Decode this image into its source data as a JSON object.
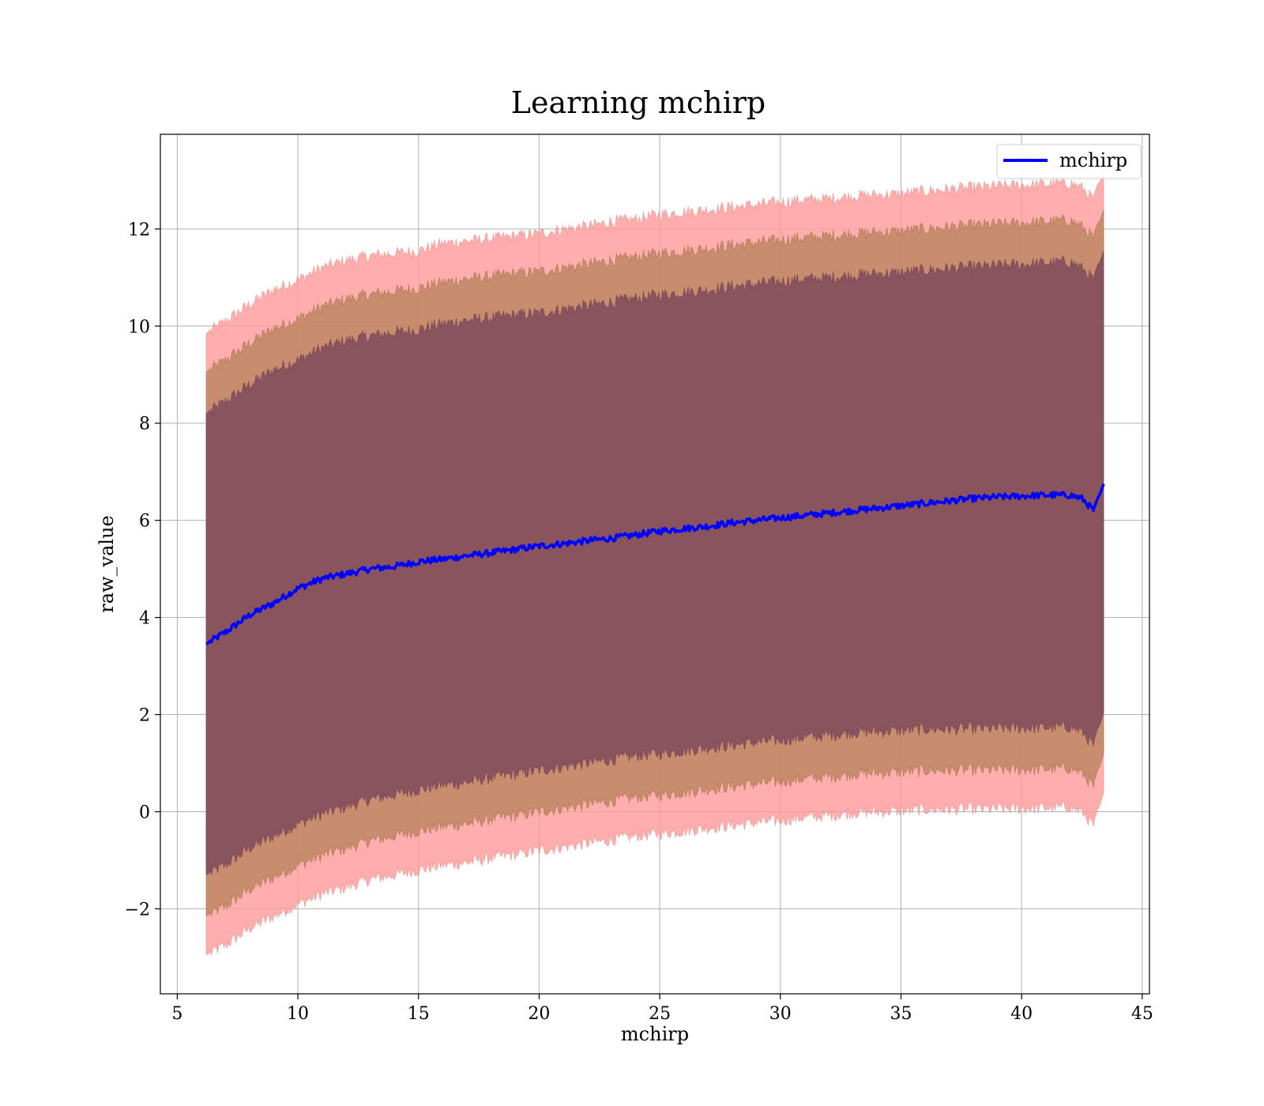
{
  "chart_data": {
    "type": "area",
    "title": "Learning mchirp",
    "xlabel": "mchirp",
    "ylabel": "raw_value",
    "xlim": [
      4.3,
      45.3
    ],
    "ylim": [
      -3.75,
      13.95
    ],
    "xticks": [
      5,
      10,
      15,
      20,
      25,
      30,
      35,
      40,
      45
    ],
    "yticks": [
      -2,
      0,
      2,
      4,
      6,
      8,
      10,
      12
    ],
    "ytick_labels": [
      "−2",
      "0",
      "2",
      "4",
      "6",
      "8",
      "10",
      "12"
    ],
    "grid": true,
    "legend": {
      "placement": "top-right",
      "entries": [
        "mchirp"
      ]
    },
    "colors": {
      "line": "#0000ff",
      "band_outer": "#ff9999",
      "band_middle": "#b5835a",
      "band_inner": "#7f4a5c"
    },
    "x": [
      6.2,
      7,
      8,
      9,
      10,
      11,
      12,
      13,
      14,
      15,
      16,
      17,
      18,
      19,
      20,
      21,
      22,
      23,
      24,
      25,
      26,
      27,
      28,
      29,
      30,
      31,
      32,
      33,
      34,
      35,
      36,
      37,
      38,
      39,
      40,
      41,
      42,
      42.5,
      43,
      43.4
    ],
    "series": [
      {
        "name": "mchirp",
        "role": "line",
        "values": [
          3.45,
          3.7,
          4.05,
          4.3,
          4.6,
          4.8,
          4.9,
          5.0,
          5.05,
          5.15,
          5.2,
          5.27,
          5.33,
          5.4,
          5.47,
          5.52,
          5.58,
          5.63,
          5.7,
          5.78,
          5.83,
          5.88,
          5.95,
          6.0,
          6.05,
          6.1,
          6.15,
          6.2,
          6.25,
          6.3,
          6.35,
          6.4,
          6.45,
          6.48,
          6.5,
          6.52,
          6.52,
          6.45,
          6.2,
          6.75
        ]
      },
      {
        "role": "band_outer",
        "upper": [
          9.85,
          10.1,
          10.45,
          10.75,
          10.95,
          11.2,
          11.35,
          11.45,
          11.5,
          11.55,
          11.7,
          11.75,
          11.8,
          11.85,
          11.9,
          12.0,
          12.05,
          12.15,
          12.2,
          12.3,
          12.35,
          12.4,
          12.45,
          12.5,
          12.55,
          12.6,
          12.62,
          12.68,
          12.7,
          12.72,
          12.78,
          12.82,
          12.85,
          12.88,
          12.9,
          12.92,
          12.95,
          12.85,
          12.6,
          13.2
        ],
        "lower": [
          -2.95,
          -2.75,
          -2.4,
          -2.15,
          -1.9,
          -1.7,
          -1.55,
          -1.4,
          -1.3,
          -1.2,
          -1.1,
          -1.05,
          -0.95,
          -0.88,
          -0.8,
          -0.72,
          -0.65,
          -0.58,
          -0.5,
          -0.45,
          -0.4,
          -0.33,
          -0.28,
          -0.22,
          -0.18,
          -0.12,
          -0.08,
          -0.02,
          0.0,
          0.02,
          0.05,
          0.05,
          0.06,
          0.06,
          0.07,
          0.08,
          0.1,
          0.0,
          -0.3,
          0.4
        ]
      },
      {
        "role": "band_middle",
        "upper": [
          9.05,
          9.3,
          9.65,
          9.95,
          10.15,
          10.4,
          10.55,
          10.65,
          10.72,
          10.78,
          10.9,
          10.97,
          11.02,
          11.08,
          11.12,
          11.2,
          11.27,
          11.35,
          11.42,
          11.5,
          11.55,
          11.6,
          11.67,
          11.72,
          11.77,
          11.82,
          11.85,
          11.9,
          11.93,
          11.95,
          12.0,
          12.04,
          12.07,
          12.1,
          12.12,
          12.15,
          12.18,
          12.05,
          11.8,
          12.4
        ],
        "lower": [
          -2.15,
          -1.95,
          -1.6,
          -1.35,
          -1.1,
          -0.9,
          -0.75,
          -0.6,
          -0.5,
          -0.4,
          -0.3,
          -0.25,
          -0.15,
          -0.08,
          0.0,
          0.08,
          0.15,
          0.22,
          0.3,
          0.35,
          0.4,
          0.47,
          0.52,
          0.58,
          0.62,
          0.68,
          0.72,
          0.78,
          0.8,
          0.82,
          0.85,
          0.85,
          0.86,
          0.86,
          0.87,
          0.88,
          0.9,
          0.8,
          0.5,
          1.2
        ]
      },
      {
        "role": "band_inner",
        "upper": [
          8.2,
          8.45,
          8.8,
          9.1,
          9.3,
          9.55,
          9.7,
          9.8,
          9.87,
          9.93,
          10.05,
          10.12,
          10.17,
          10.23,
          10.27,
          10.35,
          10.42,
          10.5,
          10.57,
          10.65,
          10.7,
          10.75,
          10.82,
          10.87,
          10.92,
          10.97,
          11.0,
          11.05,
          11.08,
          11.1,
          11.15,
          11.19,
          11.22,
          11.25,
          11.27,
          11.3,
          11.33,
          11.2,
          10.95,
          11.55
        ],
        "lower": [
          -1.3,
          -1.1,
          -0.75,
          -0.5,
          -0.25,
          -0.05,
          0.1,
          0.25,
          0.35,
          0.45,
          0.55,
          0.6,
          0.7,
          0.77,
          0.85,
          0.93,
          1.0,
          1.07,
          1.15,
          1.2,
          1.25,
          1.32,
          1.37,
          1.43,
          1.47,
          1.53,
          1.57,
          1.63,
          1.65,
          1.67,
          1.7,
          1.7,
          1.71,
          1.71,
          1.72,
          1.73,
          1.75,
          1.65,
          1.35,
          2.05
        ]
      }
    ]
  }
}
